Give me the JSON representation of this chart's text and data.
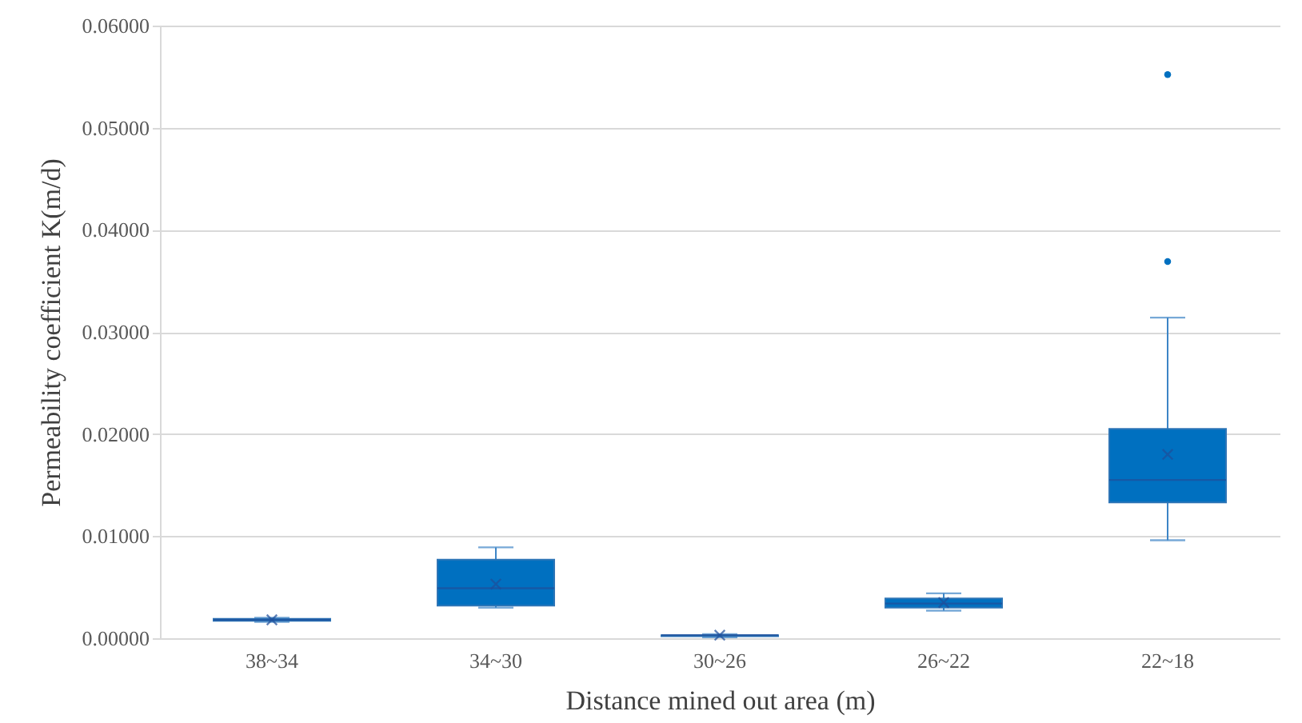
{
  "chart_data": {
    "type": "box",
    "xlabel": "Distance mined out area (m)",
    "ylabel": "Permeability coefficient K(m/d)",
    "categories": [
      "38~34",
      "34~30",
      "30~26",
      "26~22",
      "22~18"
    ],
    "color": "#0070c0",
    "ylim": [
      0,
      0.06
    ],
    "yticks": [
      {
        "value": 0,
        "label": "0.00000"
      },
      {
        "value": 0.01,
        "label": "0.01000"
      },
      {
        "value": 0.02,
        "label": "0.02000"
      },
      {
        "value": 0.03,
        "label": "0.03000"
      },
      {
        "value": 0.04,
        "label": "0.04000"
      },
      {
        "value": 0.05,
        "label": "0.05000"
      },
      {
        "value": 0.06,
        "label": "0.06000"
      }
    ],
    "grid": "y",
    "boxes": [
      {
        "low": 0.0016,
        "q1": 0.0017,
        "median": 0.0018,
        "q3": 0.0019,
        "high": 0.002,
        "mean": 0.0018
      },
      {
        "low": 0.003,
        "q1": 0.0032,
        "median": 0.0049,
        "q3": 0.0077,
        "high": 0.0089,
        "mean": 0.0053
      },
      {
        "low": 0.0001,
        "q1": 0.0002,
        "median": 0.0003,
        "q3": 0.0003,
        "high": 0.0004,
        "mean": 0.0003
      },
      {
        "low": 0.0027,
        "q1": 0.003,
        "median": 0.0034,
        "q3": 0.0039,
        "high": 0.0044,
        "mean": 0.0035
      },
      {
        "low": 0.0096,
        "q1": 0.0133,
        "median": 0.0155,
        "q3": 0.0205,
        "high": 0.0314,
        "mean": 0.018,
        "outliers": [
          0.0369,
          0.0552
        ]
      }
    ]
  }
}
